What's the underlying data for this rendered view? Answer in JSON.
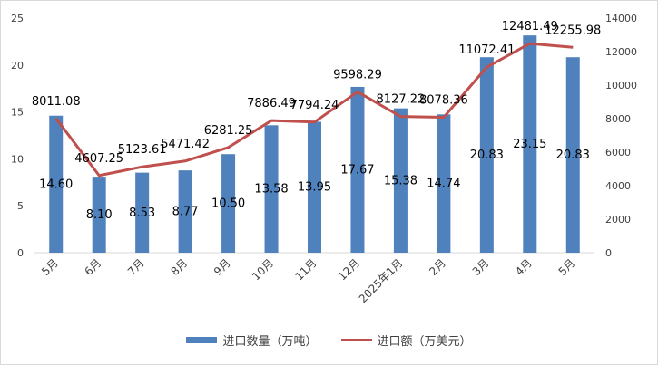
{
  "chart_data": {
    "type": "bar+line",
    "categories": [
      "5月",
      "6月",
      "7月",
      "8月",
      "9月",
      "10月",
      "11月",
      "12月",
      "2025年1月",
      "2月",
      "3月",
      "4月",
      "5月"
    ],
    "series": [
      {
        "name": "进口数量（万吨）",
        "type": "bar",
        "axis": "left",
        "color": "#4f81bd",
        "values": [
          14.6,
          8.1,
          8.53,
          8.77,
          10.5,
          13.58,
          13.95,
          17.67,
          15.38,
          14.74,
          20.83,
          23.15,
          20.83
        ],
        "labels": [
          "14.60",
          "8.10",
          "8.53",
          "8.77",
          "10.50",
          "13.58",
          "13.95",
          "17.67",
          "15.38",
          "14.74",
          "20.83",
          "23.15",
          "20.83"
        ]
      },
      {
        "name": "进口额（万美元）",
        "type": "line",
        "axis": "right",
        "color": "#c0504d",
        "values": [
          8011.08,
          4607.25,
          5123.61,
          5471.42,
          6281.25,
          7886.49,
          7794.24,
          9598.29,
          8127.22,
          8078.36,
          11072.41,
          12481.49,
          12255.98
        ],
        "labels": [
          "8011.08",
          "4607.25",
          "5123.61",
          "5471.42",
          "6281.25",
          "7886.49",
          "7794.24",
          "9598.29",
          "8127.22",
          "8078.36",
          "11072.41",
          "12481.49",
          "12255.98"
        ]
      }
    ],
    "y_left": {
      "ylim": [
        0,
        25
      ],
      "ticks": [
        "0",
        "5",
        "10",
        "15",
        "20",
        "25"
      ]
    },
    "y_right": {
      "ylim": [
        0,
        14000
      ],
      "ticks": [
        "0",
        "2000",
        "4000",
        "6000",
        "8000",
        "10000",
        "12000",
        "14000"
      ]
    },
    "grid": false,
    "legend": "bottom"
  }
}
